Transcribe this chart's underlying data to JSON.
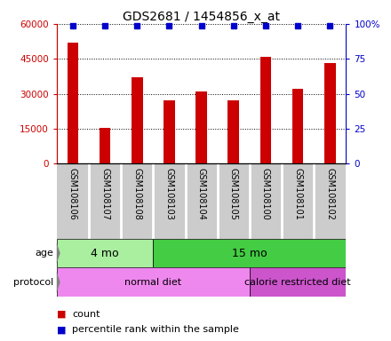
{
  "title": "GDS2681 / 1454856_x_at",
  "samples": [
    "GSM108106",
    "GSM108107",
    "GSM108108",
    "GSM108103",
    "GSM108104",
    "GSM108105",
    "GSM108100",
    "GSM108101",
    "GSM108102"
  ],
  "counts": [
    52000,
    15500,
    37000,
    27000,
    31000,
    27000,
    46000,
    32000,
    43000
  ],
  "bar_color": "#cc0000",
  "dot_color": "#0000cc",
  "left_axis_color": "#cc0000",
  "right_axis_color": "#0000cc",
  "ylim_left": [
    0,
    60000
  ],
  "ylim_right": [
    0,
    100
  ],
  "yticks_left": [
    0,
    15000,
    30000,
    45000,
    60000
  ],
  "ytick_labels_left": [
    "0",
    "15000",
    "30000",
    "45000",
    "60000"
  ],
  "yticks_right": [
    0,
    25,
    50,
    75,
    100
  ],
  "ytick_labels_right": [
    "0",
    "25",
    "50",
    "75",
    "100%"
  ],
  "age_groups": [
    {
      "label": "4 mo",
      "start": 0,
      "end": 3,
      "color": "#aaeea0"
    },
    {
      "label": "15 mo",
      "start": 3,
      "end": 9,
      "color": "#44cc44"
    }
  ],
  "protocol_groups": [
    {
      "label": "normal diet",
      "start": 0,
      "end": 6,
      "color": "#ee88ee"
    },
    {
      "label": "calorie restricted diet",
      "start": 6,
      "end": 9,
      "color": "#cc55cc"
    }
  ],
  "xlabel_bg": "#cccccc",
  "plot_bg_color": "#ffffff",
  "legend_count_label": "count",
  "legend_pct_label": "percentile rank within the sample"
}
